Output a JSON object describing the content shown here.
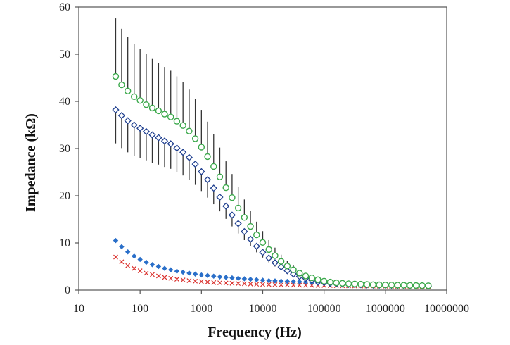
{
  "chart_data": {
    "type": "scatter",
    "xlabel": "Frequency (Hz)",
    "ylabel": "Impedance (kΩ)",
    "x_scale": "log",
    "xlim": [
      10,
      10000000
    ],
    "ylim": [
      0,
      60
    ],
    "x_ticks": [
      10,
      100,
      1000,
      10000,
      100000,
      1000000,
      10000000
    ],
    "x_tick_labels": [
      "10",
      "100",
      "1000",
      "10000",
      "100000",
      "1000000",
      "10000000"
    ],
    "y_ticks": [
      0,
      10,
      20,
      30,
      40,
      50,
      60
    ],
    "y_tick_labels": [
      "0",
      "10",
      "20",
      "30",
      "40",
      "50",
      "60"
    ],
    "grid": false,
    "legend": "none",
    "x": [
      40,
      50,
      63,
      80,
      100,
      126,
      158,
      200,
      251,
      316,
      398,
      501,
      631,
      794,
      1000,
      1259,
      1585,
      1995,
      2512,
      3162,
      3981,
      5012,
      6310,
      7943,
      10000,
      12589,
      15849,
      19953,
      25119,
      31623,
      39811,
      50119,
      63096,
      79433,
      100000,
      125893,
      158489,
      199526,
      251189,
      316228,
      398107,
      501187,
      630957,
      794328,
      1000000,
      1258925,
      1584893,
      1995262,
      2511886,
      3162278,
      3981072,
      5011872
    ],
    "series": [
      {
        "marker": "open-circle",
        "color": "#3aa84a",
        "values": [
          45.3,
          43.5,
          42.2,
          41.0,
          40.2,
          39.3,
          38.6,
          38.0,
          37.3,
          36.7,
          35.8,
          34.9,
          33.7,
          32.1,
          30.3,
          28.3,
          26.2,
          24.0,
          21.7,
          19.6,
          17.4,
          15.4,
          13.5,
          11.7,
          10.1,
          8.6,
          7.3,
          6.1,
          5.1,
          4.3,
          3.6,
          3.0,
          2.6,
          2.2,
          1.9,
          1.7,
          1.55,
          1.45,
          1.35,
          1.3,
          1.25,
          1.2,
          1.15,
          1.12,
          1.1,
          1.08,
          1.05,
          1.03,
          1.0,
          0.98,
          0.95,
          0.92
        ],
        "error_plus": [
          12.3,
          11.9,
          11.5,
          11.2,
          10.9,
          10.7,
          10.4,
          10.2,
          10.0,
          9.8,
          9.5,
          9.2,
          8.8,
          8.4,
          7.9,
          7.4,
          6.8,
          6.2,
          5.6,
          5.0,
          4.4,
          3.8,
          3.3,
          2.8,
          2.4,
          2.0,
          1.7,
          1.4,
          1.1,
          0.9,
          0.7,
          0.5,
          0.4,
          0.3,
          0.25,
          0.2,
          0.18,
          0.15,
          0.13,
          0.12,
          0.1,
          0.1,
          0.1,
          0.1,
          0.1,
          0.1,
          0.1,
          0.1,
          0.1,
          0.1,
          0.1,
          0.1
        ]
      },
      {
        "marker": "open-diamond",
        "color": "#1f3f8f",
        "values": [
          38.2,
          37.0,
          35.9,
          35.0,
          34.3,
          33.6,
          32.9,
          32.3,
          31.6,
          31.0,
          30.1,
          29.2,
          28.1,
          26.7,
          25.1,
          23.4,
          21.6,
          19.7,
          17.8,
          15.9,
          14.1,
          12.4,
          10.8,
          9.3,
          8.0,
          6.8,
          5.8,
          4.9,
          4.1,
          3.4,
          2.9,
          2.5,
          2.1,
          1.8,
          1.6,
          1.45,
          1.35,
          1.28,
          1.22,
          1.17,
          1.13,
          1.1,
          1.07,
          1.05,
          1.03,
          1.0,
          0.98,
          0.95,
          0.93,
          0.9,
          0.88,
          0.85
        ],
        "error_minus": [
          7.1,
          6.9,
          6.7,
          6.5,
          6.3,
          6.1,
          5.9,
          5.7,
          5.5,
          5.3,
          5.1,
          4.9,
          4.7,
          4.4,
          4.1,
          3.8,
          3.4,
          3.0,
          2.7,
          2.4,
          2.1,
          1.8,
          1.5,
          1.3,
          1.1,
          0.9,
          0.8,
          0.7,
          0.6,
          0.5,
          0.4,
          0.3,
          0.25,
          0.2,
          0.15,
          0.12,
          0.1,
          0.1,
          0.1,
          0.1,
          0.1,
          0.1,
          0.1,
          0.1,
          0.1,
          0.1,
          0.1,
          0.1,
          0.1,
          0.1,
          0.1,
          0.1
        ]
      },
      {
        "marker": "filled-diamond",
        "color": "#2a6fc9",
        "values": [
          10.5,
          9.2,
          8.1,
          7.2,
          6.5,
          5.9,
          5.4,
          5.0,
          4.6,
          4.3,
          4.0,
          3.8,
          3.6,
          3.4,
          3.2,
          3.1,
          2.95,
          2.8,
          2.7,
          2.6,
          2.5,
          2.4,
          2.3,
          2.2,
          2.1,
          2.0,
          1.95,
          1.9,
          1.85,
          1.8,
          1.75,
          1.7,
          1.6,
          1.5,
          1.45,
          1.4,
          1.35,
          1.3,
          1.25,
          1.2,
          1.15,
          1.1,
          1.08,
          1.05,
          1.02,
          1.0,
          0.98,
          0.96,
          0.94,
          0.92,
          0.9,
          0.88
        ]
      },
      {
        "marker": "cross",
        "color": "#d9302c",
        "values": [
          7.0,
          6.0,
          5.2,
          4.6,
          4.1,
          3.6,
          3.3,
          3.0,
          2.7,
          2.5,
          2.3,
          2.15,
          2.0,
          1.9,
          1.8,
          1.7,
          1.6,
          1.55,
          1.5,
          1.45,
          1.4,
          1.35,
          1.3,
          1.25,
          1.2,
          1.18,
          1.15,
          1.12,
          1.1,
          1.08,
          1.06,
          1.04,
          1.02,
          1.0,
          0.98,
          0.96,
          0.94,
          0.92,
          0.9,
          0.88,
          0.86,
          0.85,
          0.84,
          0.83,
          0.82,
          0.81,
          0.8,
          0.8,
          0.79,
          0.78,
          0.77,
          0.76
        ]
      }
    ]
  }
}
